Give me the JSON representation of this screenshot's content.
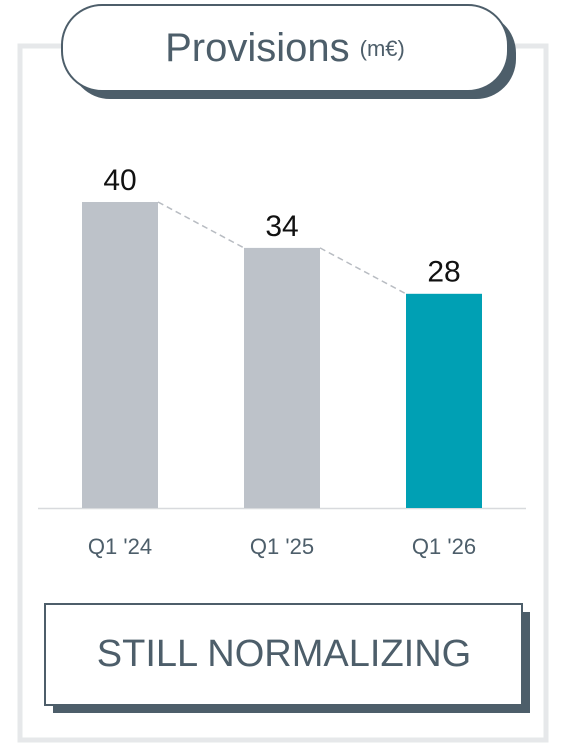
{
  "chart_data": {
    "type": "bar",
    "title": "Provisions",
    "subtitle": "(m€)",
    "categories": [
      "Q1 '24",
      "Q1 '25",
      "Q1 '26"
    ],
    "values": [
      40,
      34,
      28
    ],
    "colors": [
      "#bdc2c9",
      "#bdc2c9",
      "#00a0b4"
    ],
    "ylim": [
      0,
      40
    ],
    "annotation": "STILL NORMALIZING"
  }
}
